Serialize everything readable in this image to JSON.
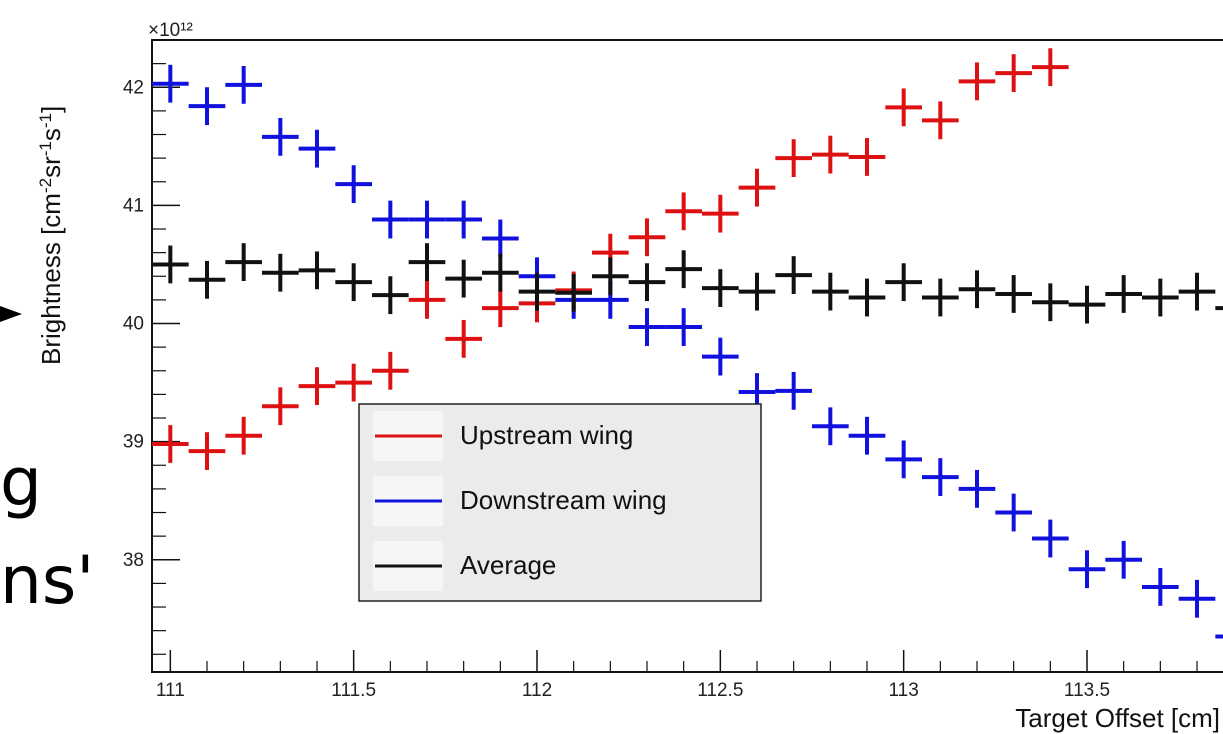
{
  "slide": {
    "fragments": [
      "g",
      "ns'"
    ]
  },
  "chart_data": {
    "type": "scatter",
    "xlabel": "Target Offset [cm]",
    "ylabel": "Brightness [cm^-2 sr^-1 s^-1]",
    "exponent_label": "×10¹²",
    "xlim": [
      110.95,
      113.95
    ],
    "ylim": [
      37.05,
      42.4
    ],
    "x_ticks": [
      111,
      111.5,
      112,
      112.5,
      113,
      113.5
    ],
    "x_tick_labels": [
      "111",
      "111.5",
      "112",
      "112.5",
      "113",
      "113.5"
    ],
    "y_ticks": [
      38,
      39,
      40,
      41,
      42
    ],
    "y_tick_labels": [
      "38",
      "39",
      "40",
      "41",
      "42"
    ],
    "x_error": 0.05,
    "y_error": 0.04,
    "legend_position": "center",
    "grid": false,
    "series": [
      {
        "name": "Upstream wing",
        "color": "#dd1111",
        "x": [
          111.0,
          111.1,
          111.2,
          111.3,
          111.4,
          111.5,
          111.6,
          111.7,
          111.8,
          111.9,
          112.0,
          112.1,
          112.2,
          112.3,
          112.4,
          112.5,
          112.6,
          112.7,
          112.8,
          112.9,
          113.0,
          113.1,
          113.2,
          113.3,
          113.4
        ],
        "y": [
          38.98,
          38.92,
          39.05,
          39.3,
          39.47,
          39.5,
          39.6,
          40.2,
          39.87,
          40.13,
          40.17,
          40.28,
          40.6,
          40.73,
          40.95,
          40.93,
          41.15,
          41.4,
          41.43,
          41.41,
          41.83,
          41.72,
          42.05,
          42.12,
          42.17
        ]
      },
      {
        "name": "Downstream wing",
        "color": "#1111dd",
        "x": [
          111.0,
          111.1,
          111.2,
          111.3,
          111.4,
          111.5,
          111.6,
          111.7,
          111.8,
          111.9,
          112.0,
          112.1,
          112.2,
          112.3,
          112.4,
          112.5,
          112.6,
          112.7,
          112.8,
          112.9,
          113.0,
          113.1,
          113.2,
          113.3,
          113.4,
          113.5,
          113.6,
          113.7,
          113.8,
          113.9
        ],
        "y": [
          42.03,
          41.84,
          42.02,
          41.58,
          41.48,
          41.18,
          40.88,
          40.88,
          40.88,
          40.72,
          40.4,
          40.2,
          40.2,
          39.97,
          39.97,
          39.72,
          39.42,
          39.43,
          39.13,
          39.05,
          38.85,
          38.7,
          38.6,
          38.4,
          38.18,
          37.92,
          38.0,
          37.77,
          37.67,
          37.35
        ]
      },
      {
        "name": "Average",
        "color": "#111111",
        "x": [
          111.0,
          111.1,
          111.2,
          111.3,
          111.4,
          111.5,
          111.6,
          111.7,
          111.8,
          111.9,
          112.0,
          112.1,
          112.2,
          112.3,
          112.4,
          112.5,
          112.6,
          112.7,
          112.8,
          112.9,
          113.0,
          113.1,
          113.2,
          113.3,
          113.4,
          113.5,
          113.6,
          113.7,
          113.8,
          113.9
        ],
        "y": [
          40.5,
          40.37,
          40.52,
          40.43,
          40.45,
          40.35,
          40.24,
          40.52,
          40.38,
          40.43,
          40.27,
          40.26,
          40.4,
          40.35,
          40.46,
          40.3,
          40.27,
          40.41,
          40.27,
          40.22,
          40.35,
          40.22,
          40.29,
          40.25,
          40.18,
          40.16,
          40.25,
          40.22,
          40.27,
          40.13
        ]
      }
    ]
  }
}
